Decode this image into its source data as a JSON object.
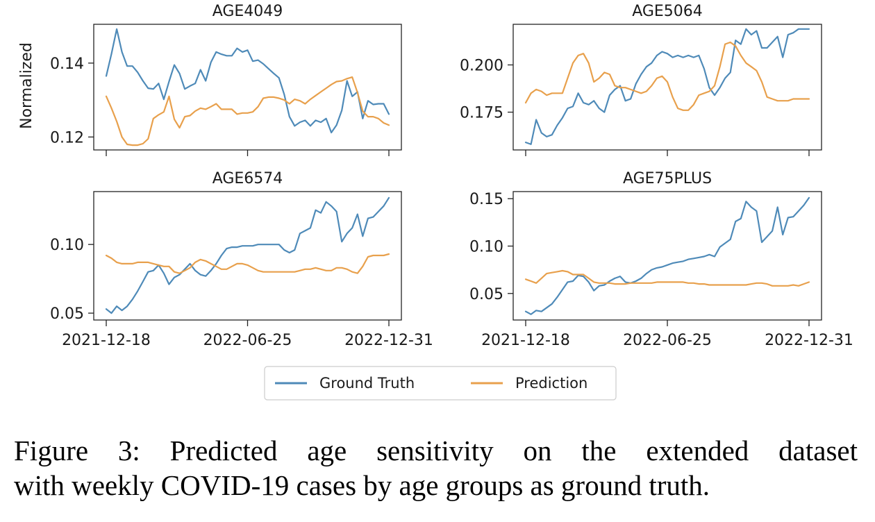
{
  "figure": {
    "caption_lines": [
      "Figure 3: Predicted age sensitivity on the extended dataset",
      "with weekly COVID-19 cases by age groups as ground truth."
    ]
  },
  "legend": {
    "entries": [
      {
        "label": "Ground Truth",
        "color": "#4e8ab8"
      },
      {
        "label": "Prediction",
        "color": "#e8a04c"
      }
    ],
    "placement": "bottom-center"
  },
  "chart_data": [
    {
      "type": "line",
      "title": "AGE4049",
      "ylabel": "Normalized",
      "x_ticks": [
        "2021-12-18",
        "2022-06-25",
        "2022-12-31"
      ],
      "show_x_tick_labels": false,
      "y_ticks": [
        0.12,
        0.14
      ],
      "y_tick_labels": [
        "0.12",
        "0.14"
      ],
      "ylim": [
        0.1165,
        0.1505
      ],
      "x_range": [
        0,
        54
      ],
      "grid": false,
      "series": [
        {
          "name": "Ground Truth",
          "color": "#4e8ab8",
          "values": [
            0.1365,
            0.1425,
            0.1492,
            0.143,
            0.1392,
            0.1392,
            0.1375,
            0.1352,
            0.1332,
            0.133,
            0.1345,
            0.1302,
            0.135,
            0.1395,
            0.1372,
            0.133,
            0.1338,
            0.1345,
            0.1382,
            0.1352,
            0.1402,
            0.143,
            0.1424,
            0.142,
            0.142,
            0.144,
            0.143,
            0.1435,
            0.1405,
            0.1408,
            0.1398,
            0.1385,
            0.1372,
            0.136,
            0.1315,
            0.1255,
            0.123,
            0.124,
            0.1245,
            0.123,
            0.1245,
            0.124,
            0.125,
            0.1212,
            0.1232,
            0.1272,
            0.1352,
            0.131,
            0.1322,
            0.125,
            0.1298,
            0.1288,
            0.129,
            0.129,
            0.1262
          ]
        },
        {
          "name": "Prediction",
          "color": "#e8a04c",
          "values": [
            0.131,
            0.1278,
            0.1242,
            0.12,
            0.118,
            0.1178,
            0.1178,
            0.1182,
            0.1195,
            0.125,
            0.126,
            0.1268,
            0.131,
            0.1248,
            0.1225,
            0.1255,
            0.1258,
            0.127,
            0.1278,
            0.1275,
            0.1282,
            0.129,
            0.1275,
            0.1275,
            0.1275,
            0.1262,
            0.1265,
            0.1265,
            0.1268,
            0.1282,
            0.1305,
            0.1308,
            0.1308,
            0.1305,
            0.13,
            0.129,
            0.1302,
            0.1298,
            0.129,
            0.1302,
            0.1312,
            0.1322,
            0.1332,
            0.1342,
            0.135,
            0.1352,
            0.1358,
            0.1362,
            0.132,
            0.127,
            0.1255,
            0.1255,
            0.125,
            0.1238,
            0.1232
          ]
        }
      ]
    },
    {
      "type": "line",
      "title": "AGE5064",
      "ylabel": "",
      "x_ticks": [
        "2021-12-18",
        "2022-06-25",
        "2022-12-31"
      ],
      "show_x_tick_labels": false,
      "y_ticks": [
        0.175,
        0.2
      ],
      "y_tick_labels": [
        "0.175",
        "0.200"
      ],
      "ylim": [
        0.155,
        0.2215
      ],
      "x_range": [
        0,
        54
      ],
      "grid": false,
      "series": [
        {
          "name": "Ground Truth",
          "color": "#4e8ab8",
          "values": [
            0.159,
            0.158,
            0.171,
            0.164,
            0.162,
            0.163,
            0.168,
            0.172,
            0.177,
            0.178,
            0.185,
            0.18,
            0.179,
            0.181,
            0.177,
            0.175,
            0.184,
            0.187,
            0.189,
            0.181,
            0.182,
            0.19,
            0.195,
            0.199,
            0.201,
            0.205,
            0.207,
            0.206,
            0.204,
            0.205,
            0.204,
            0.205,
            0.204,
            0.205,
            0.198,
            0.188,
            0.184,
            0.188,
            0.193,
            0.196,
            0.213,
            0.211,
            0.219,
            0.216,
            0.218,
            0.209,
            0.209,
            0.212,
            0.215,
            0.204,
            0.216,
            0.217,
            0.219,
            0.219,
            0.219
          ]
        },
        {
          "name": "Prediction",
          "color": "#e8a04c",
          "values": [
            0.18,
            0.185,
            0.187,
            0.186,
            0.184,
            0.185,
            0.185,
            0.185,
            0.193,
            0.201,
            0.205,
            0.206,
            0.201,
            0.191,
            0.193,
            0.196,
            0.195,
            0.189,
            0.188,
            0.188,
            0.187,
            0.186,
            0.185,
            0.186,
            0.189,
            0.193,
            0.194,
            0.191,
            0.183,
            0.177,
            0.176,
            0.176,
            0.179,
            0.184,
            0.185,
            0.186,
            0.189,
            0.199,
            0.211,
            0.212,
            0.21,
            0.205,
            0.201,
            0.199,
            0.197,
            0.191,
            0.183,
            0.182,
            0.181,
            0.181,
            0.181,
            0.182,
            0.182,
            0.182,
            0.182
          ]
        }
      ]
    },
    {
      "type": "line",
      "title": "AGE6574",
      "ylabel": "",
      "x_ticks": [
        "2021-12-18",
        "2022-06-25",
        "2022-12-31"
      ],
      "show_x_tick_labels": true,
      "y_ticks": [
        0.05,
        0.1
      ],
      "y_tick_labels": [
        "0.05",
        "0.10"
      ],
      "ylim": [
        0.045,
        0.1385
      ],
      "x_range": [
        0,
        54
      ],
      "grid": false,
      "series": [
        {
          "name": "Ground Truth",
          "color": "#4e8ab8",
          "values": [
            0.053,
            0.05,
            0.055,
            0.052,
            0.055,
            0.06,
            0.066,
            0.073,
            0.08,
            0.081,
            0.085,
            0.079,
            0.071,
            0.076,
            0.078,
            0.082,
            0.086,
            0.081,
            0.078,
            0.077,
            0.081,
            0.086,
            0.092,
            0.097,
            0.098,
            0.098,
            0.099,
            0.099,
            0.099,
            0.1,
            0.1,
            0.1,
            0.1,
            0.1,
            0.096,
            0.094,
            0.096,
            0.108,
            0.11,
            0.112,
            0.125,
            0.123,
            0.131,
            0.128,
            0.124,
            0.102,
            0.108,
            0.112,
            0.122,
            0.106,
            0.119,
            0.12,
            0.124,
            0.128,
            0.134
          ]
        },
        {
          "name": "Prediction",
          "color": "#e8a04c",
          "values": [
            0.092,
            0.09,
            0.087,
            0.086,
            0.086,
            0.086,
            0.087,
            0.087,
            0.087,
            0.086,
            0.085,
            0.084,
            0.084,
            0.08,
            0.079,
            0.081,
            0.083,
            0.087,
            0.089,
            0.088,
            0.086,
            0.084,
            0.082,
            0.082,
            0.084,
            0.086,
            0.086,
            0.085,
            0.083,
            0.081,
            0.08,
            0.08,
            0.08,
            0.08,
            0.08,
            0.08,
            0.08,
            0.081,
            0.082,
            0.082,
            0.083,
            0.082,
            0.081,
            0.081,
            0.083,
            0.083,
            0.082,
            0.08,
            0.079,
            0.084,
            0.091,
            0.092,
            0.092,
            0.092,
            0.093
          ]
        }
      ]
    },
    {
      "type": "line",
      "title": "AGE75PLUS",
      "ylabel": "",
      "x_ticks": [
        "2021-12-18",
        "2022-06-25",
        "2022-12-31"
      ],
      "show_x_tick_labels": true,
      "y_ticks": [
        0.05,
        0.1,
        0.15
      ],
      "y_tick_labels": [
        "0.05",
        "0.10",
        "0.15"
      ],
      "ylim": [
        0.022,
        0.1575
      ],
      "x_range": [
        0,
        54
      ],
      "grid": false,
      "series": [
        {
          "name": "Ground Truth",
          "color": "#4e8ab8",
          "values": [
            0.031,
            0.028,
            0.032,
            0.031,
            0.035,
            0.039,
            0.046,
            0.054,
            0.062,
            0.063,
            0.069,
            0.068,
            0.062,
            0.053,
            0.058,
            0.059,
            0.063,
            0.066,
            0.068,
            0.062,
            0.061,
            0.063,
            0.066,
            0.071,
            0.075,
            0.077,
            0.078,
            0.08,
            0.082,
            0.083,
            0.084,
            0.086,
            0.087,
            0.088,
            0.089,
            0.091,
            0.089,
            0.099,
            0.103,
            0.107,
            0.126,
            0.129,
            0.147,
            0.141,
            0.137,
            0.104,
            0.11,
            0.116,
            0.141,
            0.112,
            0.13,
            0.131,
            0.137,
            0.143,
            0.151
          ]
        },
        {
          "name": "Prediction",
          "color": "#e8a04c",
          "values": [
            0.065,
            0.063,
            0.061,
            0.066,
            0.071,
            0.072,
            0.073,
            0.074,
            0.073,
            0.07,
            0.07,
            0.07,
            0.066,
            0.062,
            0.061,
            0.061,
            0.061,
            0.06,
            0.06,
            0.06,
            0.061,
            0.061,
            0.061,
            0.061,
            0.061,
            0.062,
            0.062,
            0.062,
            0.062,
            0.062,
            0.062,
            0.061,
            0.061,
            0.06,
            0.06,
            0.059,
            0.059,
            0.059,
            0.059,
            0.059,
            0.059,
            0.059,
            0.059,
            0.06,
            0.061,
            0.061,
            0.06,
            0.058,
            0.058,
            0.058,
            0.058,
            0.059,
            0.058,
            0.06,
            0.062
          ]
        }
      ]
    }
  ]
}
